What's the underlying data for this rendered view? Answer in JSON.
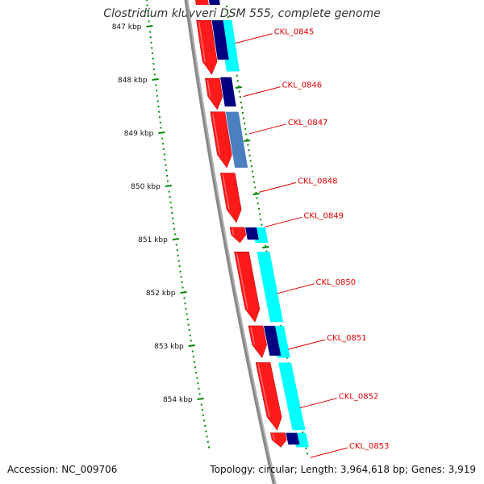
{
  "title": "Clostridium kluyveri DSM 555, complete genome",
  "footer": {
    "accession": "Accession: NC_009706",
    "summary": "Topology: circular; Length: 3,964,618 bp; Genes: 3,919"
  },
  "colors": {
    "backbone": "#888888",
    "tick": "#008800",
    "gene_red": "#ff1a1a",
    "gene_navy": "#000080",
    "gene_cyan": "#00ffff",
    "gene_steel": "#4a7fc0",
    "label": "#e00000"
  },
  "ruler": {
    "labels": [
      "847 kbp",
      "848 kbp",
      "849 kbp",
      "850 kbp",
      "851 kbp",
      "852 kbp",
      "853 kbp",
      "854 kbp"
    ],
    "start_kbp": 846.5,
    "end_kbp": 854.9
  },
  "genes": [
    {
      "locus": "CKL_0845",
      "start_kbp": 846.88,
      "end_kbp": 847.9
    },
    {
      "locus": "CKL_0846",
      "start_kbp": 847.97,
      "end_kbp": 848.56
    },
    {
      "locus": "CKL_0847",
      "start_kbp": 848.6,
      "end_kbp": 849.65
    },
    {
      "locus": "CKL_0848",
      "start_kbp": 849.75,
      "end_kbp": 850.68
    },
    {
      "locus": "CKL_0849",
      "start_kbp": 850.77,
      "end_kbp": 851.06
    },
    {
      "locus": "CKL_0850",
      "start_kbp": 851.23,
      "end_kbp": 852.55
    },
    {
      "locus": "CKL_0851",
      "start_kbp": 852.62,
      "end_kbp": 853.22
    },
    {
      "locus": "CKL_0852",
      "start_kbp": 853.31,
      "end_kbp": 854.58
    },
    {
      "locus": "CKL_0853",
      "start_kbp": 854.63,
      "end_kbp": 854.9
    }
  ],
  "label_positions_kbp": [
    847.1,
    848.1,
    848.8,
    849.9,
    850.55,
    851.8,
    852.85,
    853.95,
    854.88
  ],
  "feature_tracks": [
    {
      "track": "cyan",
      "color": "#00ffff",
      "segments": [
        [
          846.88,
          847.84
        ],
        [
          850.77,
          851.06
        ],
        [
          851.23,
          852.55
        ],
        [
          852.62,
          853.22
        ],
        [
          853.31,
          854.58
        ],
        [
          854.63,
          854.9
        ]
      ]
    },
    {
      "track": "navy",
      "color": "#000080",
      "segments": [
        [
          846.88,
          847.62
        ],
        [
          847.95,
          848.5
        ],
        [
          850.77,
          851.0
        ],
        [
          852.62,
          853.18
        ],
        [
          854.63,
          854.85
        ]
      ]
    },
    {
      "track": "steel",
      "color": "#4a7fc0",
      "segments": [
        [
          848.6,
          849.65
        ]
      ]
    }
  ],
  "top_fragment": [
    {
      "color": "#ff1a1a"
    },
    {
      "color": "#000080"
    }
  ]
}
